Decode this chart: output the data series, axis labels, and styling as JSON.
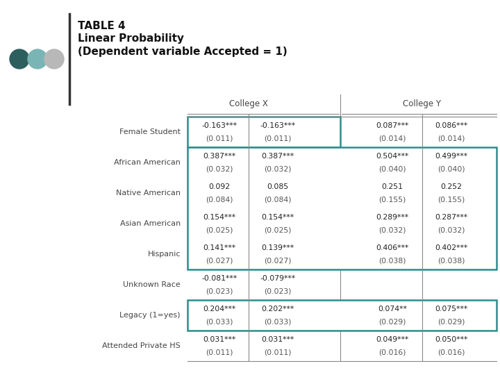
{
  "title_line1": "TABLE 4",
  "title_line2": "Linear Probability",
  "title_line3": "(Dependent variable Accepted = 1)",
  "col_group_labels": [
    "College X",
    "College Y"
  ],
  "row_labels": [
    "Female Student",
    "African American",
    "Native American",
    "Asian American",
    "Hispanic",
    "Unknown Race",
    "Legacy (1=yes)",
    "Attended Private HS"
  ],
  "data": [
    [
      "-0.163***",
      "(0.011)",
      "-0.163***",
      "(0.011)",
      "0.087***",
      "(0.014)",
      "0.086***",
      "(0.014)"
    ],
    [
      "0.387***",
      "(0.032)",
      "0.387***",
      "(0.032)",
      "0.504***",
      "(0.040)",
      "0.499***",
      "(0.040)"
    ],
    [
      "0.092",
      "(0.084)",
      "0.085",
      "(0.084)",
      "0.251",
      "(0.155)",
      "0.252",
      "(0.155)"
    ],
    [
      "0.154***",
      "(0.025)",
      "0.154***",
      "(0.025)",
      "0.289***",
      "(0.032)",
      "0.287***",
      "(0.032)"
    ],
    [
      "0.141***",
      "(0.027)",
      "0.139***",
      "(0.027)",
      "0.406***",
      "(0.038)",
      "0.402***",
      "(0.038)"
    ],
    [
      "-0.081***",
      "(0.023)",
      "-0.079***",
      "(0.023)",
      "",
      "",
      "",
      ""
    ],
    [
      "0.204***",
      "(0.033)",
      "0.202***",
      "(0.033)",
      "0.074**",
      "(0.029)",
      "0.075***",
      "(0.029)"
    ],
    [
      "0.031***",
      "(0.011)",
      "0.031***",
      "(0.011)",
      "0.049***",
      "(0.016)",
      "0.050***",
      "(0.016)"
    ]
  ],
  "highlight_color": "#2d8c8c",
  "bg_color": "#ffffff",
  "dot_colors": [
    "#2d5f5f",
    "#7ab5b5",
    "#b8b8b8"
  ],
  "line_color": "#888888",
  "text_color": "#222222",
  "label_color": "#444444"
}
